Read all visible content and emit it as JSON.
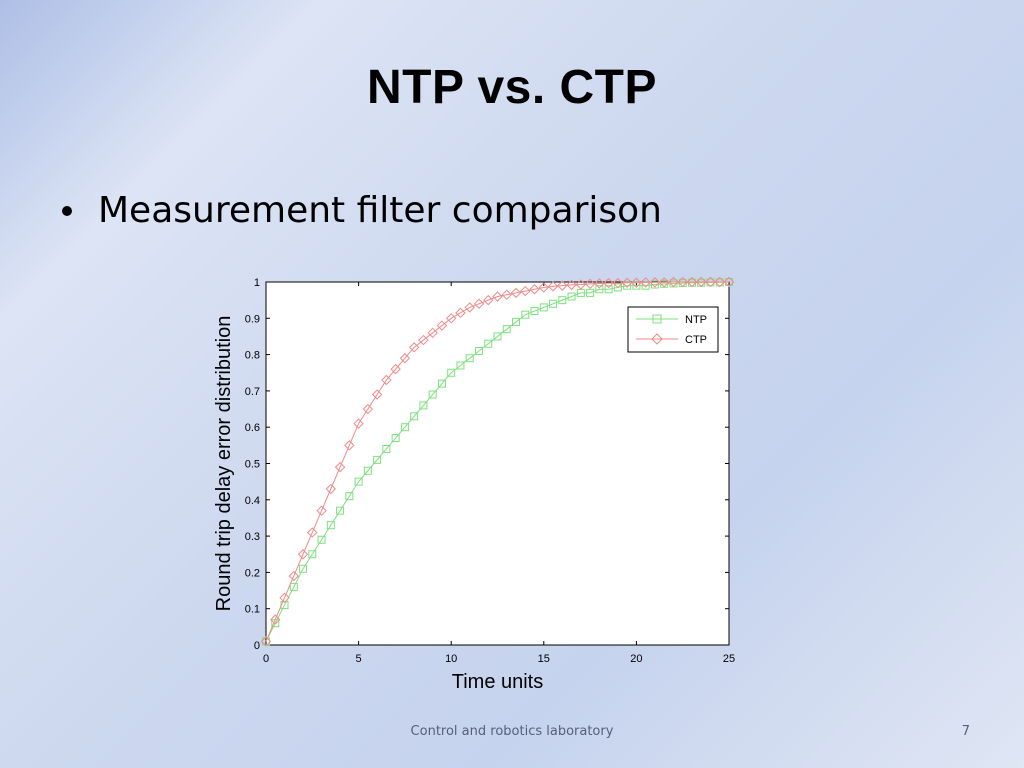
{
  "slide": {
    "title": "NTP vs. CTP",
    "bullet": "Measurement filter comparison",
    "footer": "Control and robotics laboratory",
    "page_number": "7"
  },
  "chart_data": {
    "type": "line",
    "title": "",
    "xlabel": "Time units",
    "ylabel": "Round trip delay error distribution",
    "xlim": [
      0,
      25
    ],
    "ylim": [
      0,
      1
    ],
    "xticks": [
      "0",
      "5",
      "10",
      "15",
      "20",
      "25"
    ],
    "yticks": [
      "0",
      "0.1",
      "0.2",
      "0.3",
      "0.4",
      "0.5",
      "0.6",
      "0.7",
      "0.8",
      "0.9",
      "1"
    ],
    "grid": false,
    "legend_position": "top-right",
    "series": [
      {
        "name": "NTP",
        "color": "#7ee07e",
        "marker": "square",
        "x": [
          0,
          0.5,
          1,
          1.5,
          2,
          2.5,
          3,
          3.5,
          4,
          4.5,
          5,
          5.5,
          6,
          6.5,
          7,
          7.5,
          8,
          8.5,
          9,
          9.5,
          10,
          10.5,
          11,
          11.5,
          12,
          12.5,
          13,
          13.5,
          14,
          14.5,
          15,
          15.5,
          16,
          16.5,
          17,
          17.5,
          18,
          18.5,
          19,
          19.5,
          20,
          20.5,
          21,
          21.5,
          22,
          22.5,
          23,
          23.5,
          24,
          24.5,
          25
        ],
        "y": [
          0.01,
          0.06,
          0.11,
          0.16,
          0.21,
          0.25,
          0.29,
          0.33,
          0.37,
          0.41,
          0.45,
          0.48,
          0.51,
          0.54,
          0.57,
          0.6,
          0.63,
          0.66,
          0.69,
          0.72,
          0.75,
          0.77,
          0.79,
          0.81,
          0.83,
          0.85,
          0.87,
          0.89,
          0.91,
          0.92,
          0.93,
          0.94,
          0.95,
          0.96,
          0.97,
          0.97,
          0.98,
          0.98,
          0.985,
          0.99,
          0.99,
          0.99,
          0.993,
          0.995,
          0.996,
          0.997,
          0.998,
          0.998,
          0.999,
          0.999,
          1.0
        ]
      },
      {
        "name": "CTP",
        "color": "#f08a8a",
        "marker": "diamond",
        "x": [
          0,
          0.5,
          1,
          1.5,
          2,
          2.5,
          3,
          3.5,
          4,
          4.5,
          5,
          5.5,
          6,
          6.5,
          7,
          7.5,
          8,
          8.5,
          9,
          9.5,
          10,
          10.5,
          11,
          11.5,
          12,
          12.5,
          13,
          13.5,
          14,
          14.5,
          15,
          15.5,
          16,
          16.5,
          17,
          17.5,
          18,
          18.5,
          19,
          19.5,
          20,
          20.5,
          21,
          21.5,
          22,
          22.5,
          23,
          23.5,
          24,
          24.5,
          25
        ],
        "y": [
          0.01,
          0.07,
          0.13,
          0.19,
          0.25,
          0.31,
          0.37,
          0.43,
          0.49,
          0.55,
          0.61,
          0.65,
          0.69,
          0.73,
          0.76,
          0.79,
          0.82,
          0.84,
          0.86,
          0.88,
          0.9,
          0.915,
          0.93,
          0.94,
          0.95,
          0.96,
          0.965,
          0.97,
          0.975,
          0.98,
          0.985,
          0.988,
          0.99,
          0.992,
          0.993,
          0.995,
          0.996,
          0.997,
          0.997,
          0.998,
          0.998,
          0.999,
          0.999,
          0.999,
          1.0,
          1.0,
          1.0,
          1.0,
          1.0,
          1.0,
          1.0
        ]
      }
    ]
  }
}
